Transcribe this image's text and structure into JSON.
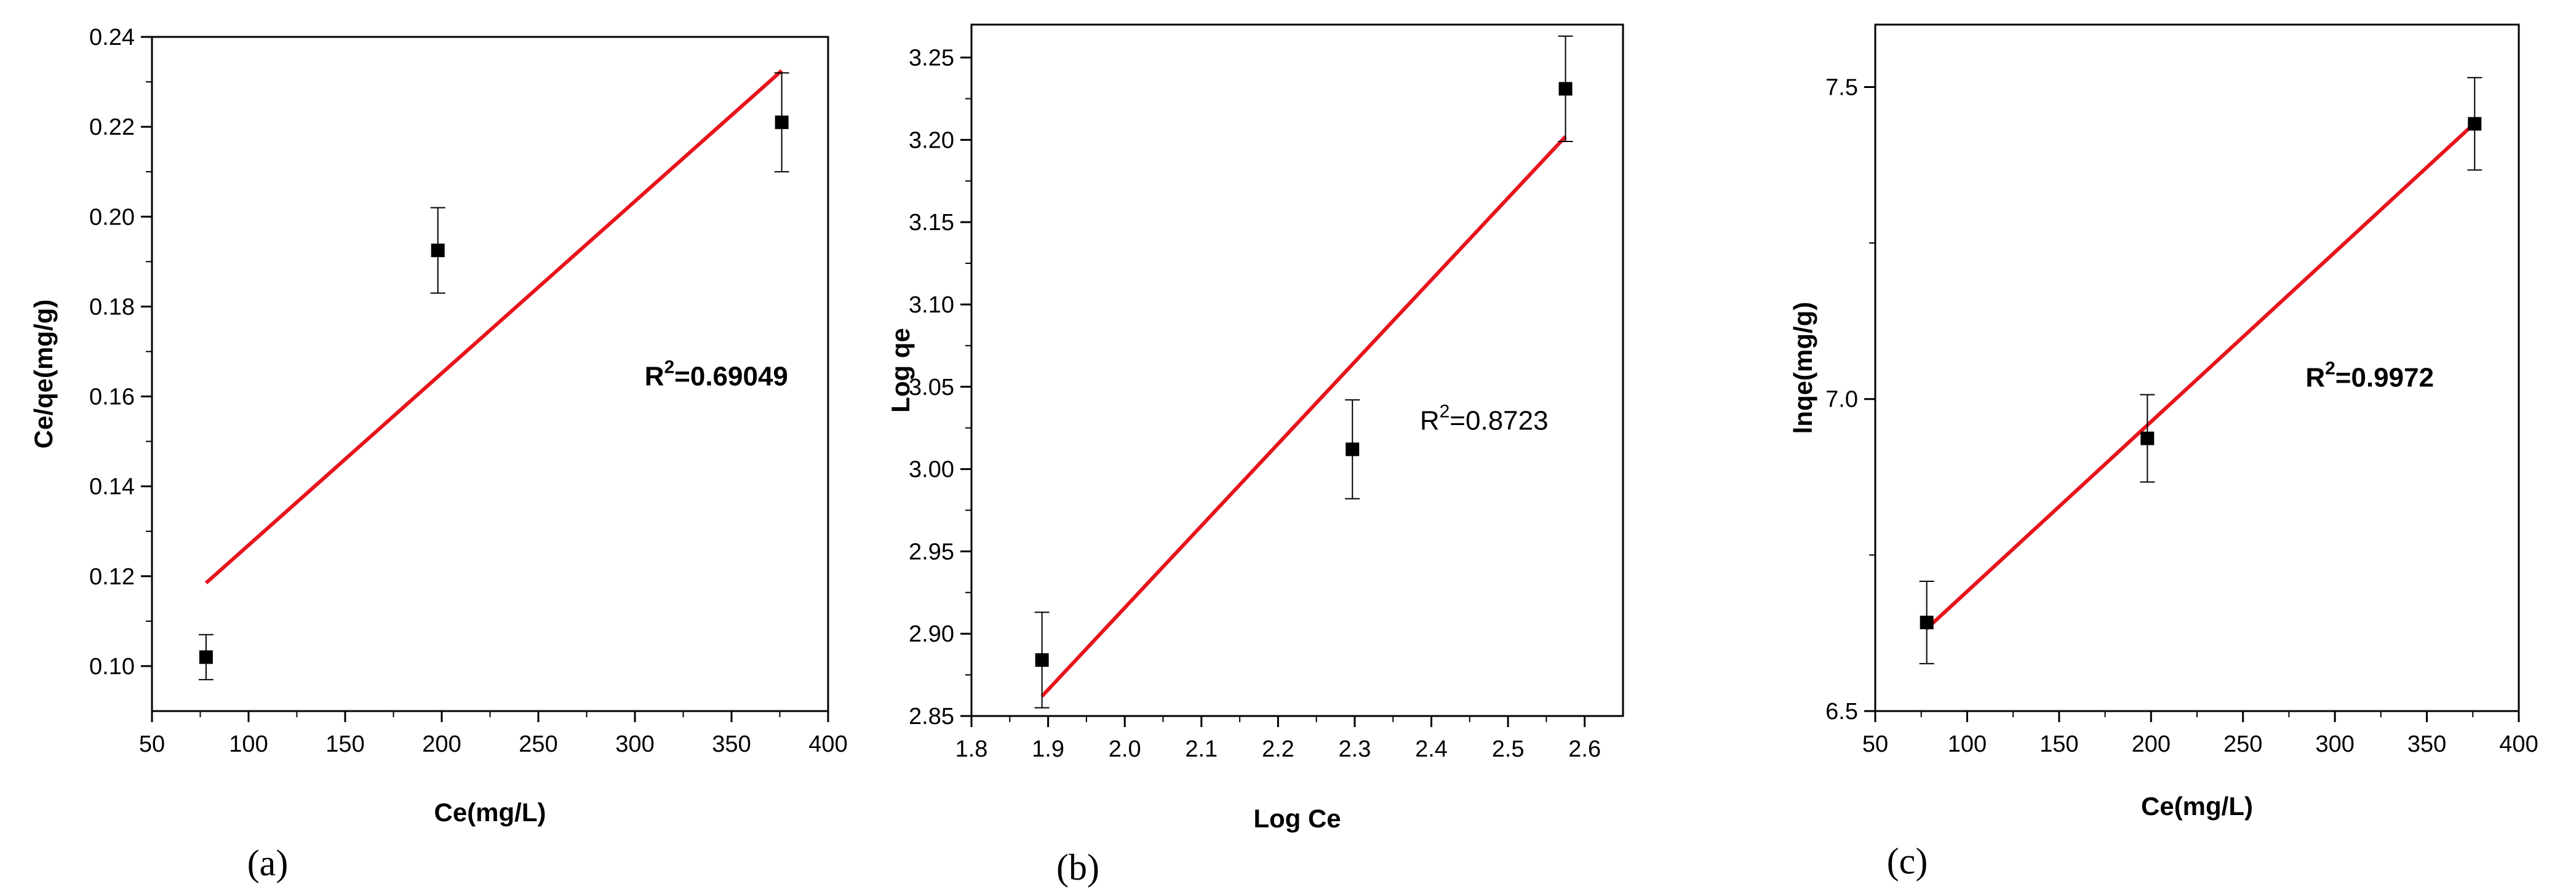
{
  "colors": {
    "fit_line": "#e8141c",
    "marker": "#000000",
    "axis": "#000000",
    "background": "#ffffff"
  },
  "chart_data": [
    {
      "type": "scatter",
      "panel_label": "(a)",
      "xlabel": "Ce(mg/L)",
      "ylabel": "Ce/qe(mg/g)",
      "xlim": [
        50,
        400
      ],
      "ylim": [
        0.09,
        0.24
      ],
      "xticks": [
        50,
        100,
        150,
        200,
        250,
        300,
        350,
        400
      ],
      "yticks": [
        0.1,
        0.12,
        0.14,
        0.16,
        0.18,
        0.2,
        0.22,
        0.24
      ],
      "ytick_labels": [
        "0.10",
        "0.12",
        "0.14",
        "0.16",
        "0.18",
        "0.20",
        "0.22",
        "0.24"
      ],
      "xtick_labels": [
        "50",
        "100",
        "150",
        "200",
        "250",
        "300",
        "350",
        "400"
      ],
      "grid": false,
      "points": [
        {
          "x": 78,
          "y": 0.102,
          "err": 0.005
        },
        {
          "x": 198,
          "y": 0.1925,
          "err": 0.0095
        },
        {
          "x": 376,
          "y": 0.221,
          "err": 0.011
        }
      ],
      "fit_line": {
        "x": [
          78,
          376
        ],
        "y": [
          0.1185,
          0.2325
        ]
      },
      "annotation": {
        "base": "R",
        "sup": "2",
        "rest": "=0.69049",
        "x": 305,
        "y": 0.1625,
        "bold": true
      }
    },
    {
      "type": "scatter",
      "panel_label": "(b)",
      "xlabel": "Log Ce",
      "ylabel": "Log qe",
      "xlim": [
        1.8,
        2.65
      ],
      "ylim": [
        2.85,
        3.27
      ],
      "xticks": [
        1.8,
        1.9,
        2.0,
        2.1,
        2.2,
        2.3,
        2.4,
        2.5,
        2.6
      ],
      "xtick_labels": [
        "1.8",
        "1.9",
        "2.0",
        "2.1",
        "2.2",
        "2.3",
        "2.4",
        "2.5",
        "2.6"
      ],
      "yticks": [
        2.85,
        2.9,
        2.95,
        3.0,
        3.05,
        3.1,
        3.15,
        3.2,
        3.25
      ],
      "ytick_labels": [
        "2.85",
        "2.90",
        "2.95",
        "3.00",
        "3.05",
        "3.10",
        "3.15",
        "3.20",
        "3.25"
      ],
      "grid": false,
      "points": [
        {
          "x": 1.892,
          "y": 2.884,
          "err": 0.029
        },
        {
          "x": 2.297,
          "y": 3.012,
          "err": 0.03
        },
        {
          "x": 2.575,
          "y": 3.231,
          "err": 0.032
        }
      ],
      "fit_line": {
        "x": [
          1.892,
          2.575
        ],
        "y": [
          2.862,
          3.202
        ]
      },
      "annotation": {
        "base": "R",
        "sup": "2",
        "rest": "=0.8723",
        "x": 2.385,
        "y": 3.024,
        "bold": false
      }
    },
    {
      "type": "scatter",
      "panel_label": "(c)",
      "xlabel": "Ce(mg/L)",
      "ylabel": "lnqe(mg/g)",
      "xlim": [
        50,
        400
      ],
      "ylim": [
        6.5,
        7.6
      ],
      "xticks": [
        50,
        100,
        150,
        200,
        250,
        300,
        350,
        400
      ],
      "xtick_labels": [
        "50",
        "100",
        "150",
        "200",
        "250",
        "300",
        "350",
        "400"
      ],
      "yticks": [
        6.5,
        7.0,
        7.5
      ],
      "ytick_labels": [
        "6.5",
        "7.0",
        "7.5"
      ],
      "grid": false,
      "points": [
        {
          "x": 78,
          "y": 6.642,
          "err": 0.066
        },
        {
          "x": 198,
          "y": 6.937,
          "err": 0.07
        },
        {
          "x": 376,
          "y": 7.441,
          "err": 0.074
        }
      ],
      "fit_line": {
        "x": [
          78,
          376
        ],
        "y": [
          6.632,
          7.442
        ]
      },
      "annotation": {
        "base": "R",
        "sup": "2",
        "rest": "=0.9972",
        "x": 284,
        "y": 7.02,
        "bold": true
      }
    }
  ]
}
